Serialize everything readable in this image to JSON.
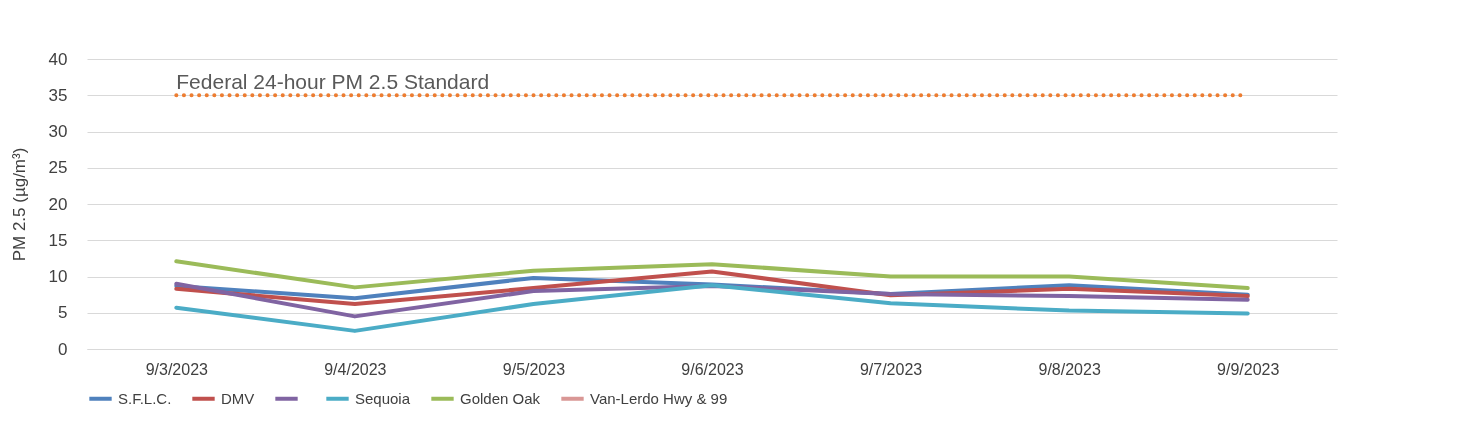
{
  "chart_data": {
    "type": "line",
    "ylabel": "PM 2.5 (µg/m³)",
    "categories": [
      "9/3/2023",
      "9/4/2023",
      "9/5/2023",
      "9/6/2023",
      "9/7/2023",
      "9/8/2023",
      "9/9/2023"
    ],
    "series": [
      {
        "name": "S.F.L.C.",
        "color": "#4f81bd",
        "values": [
          8.7,
          7.0,
          9.8,
          8.9,
          7.6,
          8.8,
          7.5
        ]
      },
      {
        "name": "DMV",
        "color": "#c0504d",
        "values": [
          8.3,
          6.2,
          8.4,
          10.7,
          7.4,
          8.3,
          7.3
        ]
      },
      {
        "name": null,
        "color": "#8064a2",
        "values": [
          9.0,
          4.5,
          8.0,
          8.7,
          7.6,
          7.3,
          6.8
        ]
      },
      {
        "name": "Sequoia",
        "color": "#4bacc6",
        "values": [
          5.7,
          2.5,
          6.2,
          8.8,
          6.3,
          5.3,
          4.9
        ]
      },
      {
        "name": "Golden Oak",
        "color": "#9bbb59",
        "values": [
          12.1,
          8.5,
          10.8,
          11.7,
          10.0,
          10.0,
          8.4
        ]
      },
      {
        "name": "Van-Lerdo Hwy & 99",
        "color": "#d99795",
        "values": [
          null,
          null,
          null,
          null,
          null,
          null,
          null
        ]
      }
    ],
    "ylim": [
      0,
      40
    ],
    "yticks": [
      0,
      5,
      10,
      15,
      20,
      25,
      30,
      35,
      40
    ],
    "ref_lines": [
      {
        "axis": "y",
        "value": 35,
        "label": "Federal 24-hour PM 2.5 Standard",
        "color": "#ed7d31",
        "line_style": "dotted"
      }
    ],
    "grid": "y",
    "legend": "bottom",
    "marker": "none",
    "line_style": "solid"
  }
}
